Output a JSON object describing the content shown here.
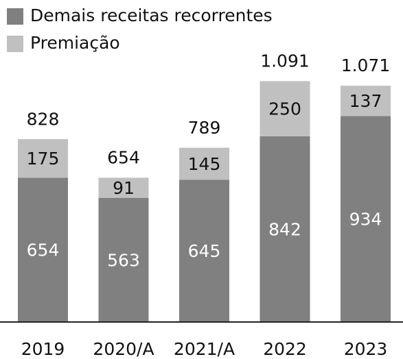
{
  "chart_data": {
    "type": "stacked_bar",
    "categories": [
      "2019",
      "2020/A",
      "2021/A",
      "2022",
      "2023"
    ],
    "series": [
      {
        "name": "Demais receitas recorrentes",
        "color": "#808080",
        "values": [
          654,
          563,
          645,
          842,
          934
        ]
      },
      {
        "name": "Premiação",
        "color": "#c0c0c0",
        "values": [
          175,
          91,
          145,
          250,
          137
        ]
      }
    ],
    "totals": {
      "values": [
        828,
        654,
        789,
        1091,
        1071
      ],
      "value_labels": [
        "828",
        "654",
        "789",
        "1.091",
        "1.071"
      ]
    }
  }
}
